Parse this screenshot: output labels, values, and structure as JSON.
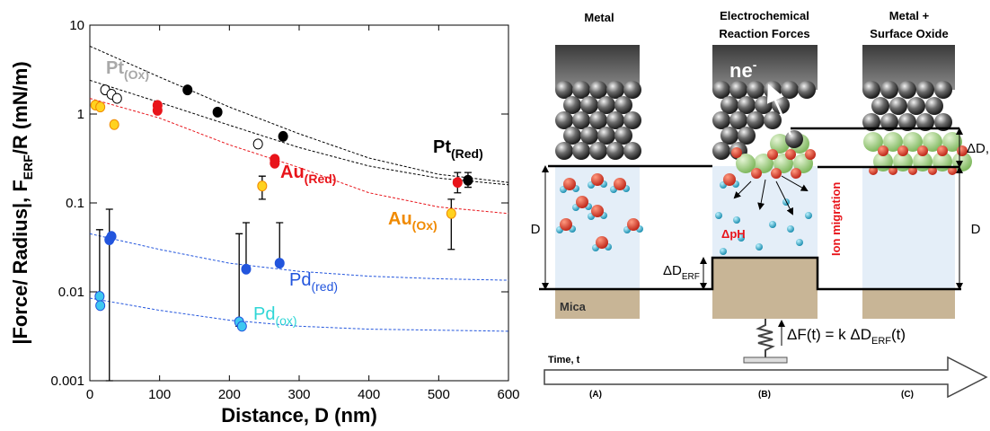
{
  "chart_data": {
    "type": "scatter",
    "xlabel": "Distance, D (nm)",
    "ylabel": {
      "main": "|Force/ Radius|, F",
      "sub": "ERF",
      "tail": "/R (mN/m)"
    },
    "xlim": [
      0,
      600
    ],
    "xticks": [
      0,
      100,
      200,
      300,
      400,
      500,
      600
    ],
    "ylim": [
      0.001,
      10
    ],
    "yticks": [
      0.001,
      0.01,
      0.1,
      1,
      10
    ],
    "yscale": "log",
    "series": [
      {
        "name": "Pt",
        "subscript": "(Ox)",
        "color": "#a8a8a8",
        "fill": "#ffffff",
        "edge": "#000000",
        "x": [
          22,
          31,
          39,
          241
        ],
        "values": [
          1.87,
          1.67,
          1.5,
          0.46
        ],
        "yerr": [
          null,
          null,
          null,
          null
        ]
      },
      {
        "name": "Pt",
        "subscript": "(Red)",
        "color": "#000000",
        "fill": "#000000",
        "edge": "#000000",
        "x": [
          140,
          183,
          277,
          542
        ],
        "values": [
          1.87,
          1.05,
          0.56,
          0.18
        ],
        "yerr": [
          null,
          null,
          null,
          [
            0.15,
            0.22
          ]
        ]
      },
      {
        "name": "Au",
        "subscript": "(Red)",
        "color": "#e8141a",
        "fill": "#e8141a",
        "edge": "#e8141a",
        "x": [
          97,
          97,
          265,
          265,
          527
        ],
        "values": [
          1.25,
          1.1,
          0.31,
          0.28,
          0.17
        ],
        "yerr": [
          null,
          null,
          null,
          null,
          [
            0.13,
            0.22
          ]
        ]
      },
      {
        "name": "Au",
        "subscript": "(Ox)",
        "color": "#f08a00",
        "fill": "#ffd21f",
        "edge": "#f08a00",
        "x": [
          8,
          15,
          35,
          247,
          518
        ],
        "values": [
          1.26,
          1.2,
          0.76,
          0.155,
          0.076
        ],
        "yerr": [
          null,
          null,
          null,
          [
            0.11,
            0.2
          ],
          [
            0.03,
            0.11
          ]
        ]
      },
      {
        "name": "Pd",
        "subscript": "(red)",
        "color": "#2255dd",
        "fill": "#2255dd",
        "edge": "#2255dd",
        "x": [
          28,
          31,
          224,
          272
        ],
        "values": [
          0.0385,
          0.042,
          0.018,
          0.021
        ],
        "yerr": [
          [
            0.001,
            0.085
          ],
          null,
          [
            0.018,
            0.06
          ],
          [
            0.021,
            0.06
          ]
        ]
      },
      {
        "name": "Pd",
        "subscript": "(ox)",
        "color": "#2fd6d6",
        "fill": "#3fc8f0",
        "edge": "#2255dd",
        "x": [
          14,
          15,
          214,
          218
        ],
        "values": [
          0.0089,
          0.007,
          0.0046,
          0.0041
        ],
        "yerr": [
          [
            0.007,
            0.05
          ],
          null,
          [
            0.0041,
            0.045
          ],
          null
        ]
      }
    ],
    "fits": [
      {
        "color": "#000000",
        "x": [
          0,
          100,
          200,
          300,
          400,
          500,
          600
        ],
        "values": [
          5.8,
          2.6,
          1.2,
          0.6,
          0.32,
          0.21,
          0.17
        ]
      },
      {
        "color": "#000000",
        "x": [
          0,
          100,
          200,
          300,
          400,
          500,
          600
        ],
        "values": [
          2.4,
          1.35,
          0.75,
          0.42,
          0.26,
          0.19,
          0.16
        ]
      },
      {
        "color": "#e8141a",
        "x": [
          0,
          100,
          200,
          300,
          400,
          500,
          600
        ],
        "values": [
          1.5,
          0.9,
          0.45,
          0.25,
          0.13,
          0.09,
          0.076
        ]
      },
      {
        "color": "#2255dd",
        "x": [
          0,
          100,
          200,
          300,
          400,
          500,
          600
        ],
        "values": [
          0.045,
          0.03,
          0.021,
          0.017,
          0.015,
          0.014,
          0.0135
        ]
      },
      {
        "color": "#2255dd",
        "x": [
          0,
          100,
          200,
          300,
          400,
          500,
          600
        ],
        "values": [
          0.0085,
          0.0062,
          0.0048,
          0.0041,
          0.0038,
          0.0037,
          0.0036
        ]
      }
    ]
  },
  "diagram": {
    "panels": [
      {
        "title": [
          "Metal"
        ],
        "label": "(A)"
      },
      {
        "title": [
          "Electrochemical",
          "Reaction Forces"
        ],
        "label": "(B)"
      },
      {
        "title": [
          "Metal +",
          "Surface Oxide"
        ],
        "label": "(C)"
      }
    ],
    "electrons": {
      "text": "ne",
      "sup": "-"
    },
    "d_left": "D",
    "d_right": "D",
    "delta_d_erf": {
      "text": "ΔD",
      "sub": "ERF"
    },
    "delta_d_r": "ΔD,",
    "mica": "Mica",
    "ph": "ΔpH",
    "ion_migration": "Ion migration",
    "force": {
      "text": "ΔF(t) = k ΔD",
      "sub": "ERF",
      "tail": "(t)"
    },
    "time": "Time, t"
  }
}
